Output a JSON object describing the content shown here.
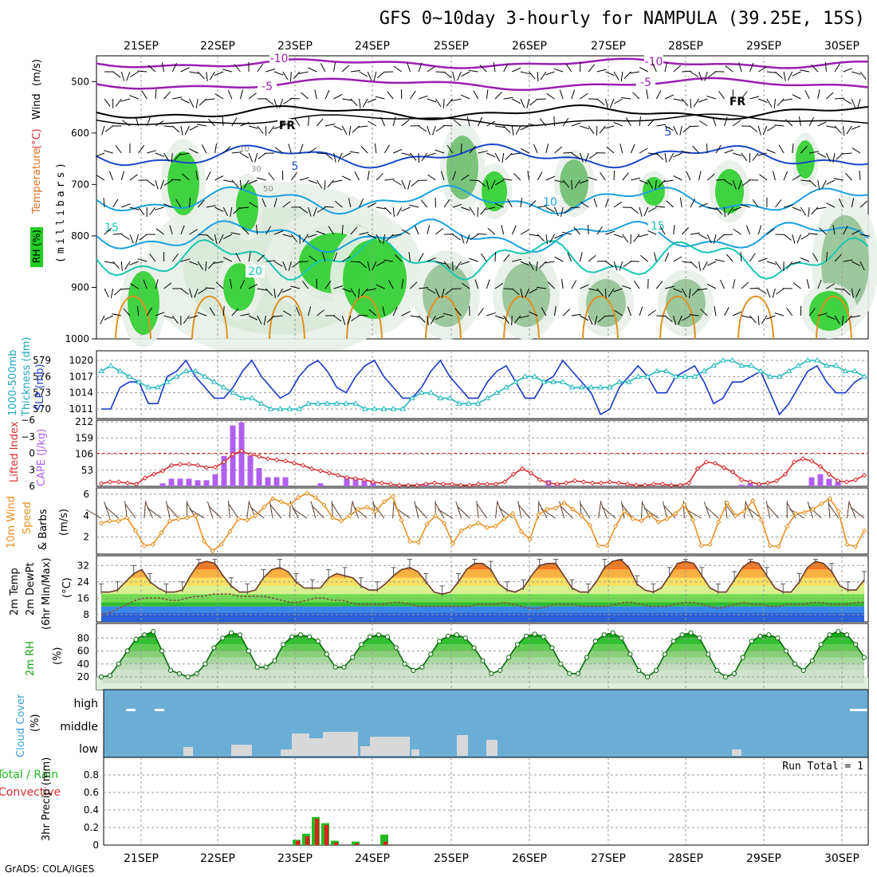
{
  "title": "GFS 0~10day 3-hourly for NAMPULA (39.25E, 15S)",
  "footer": "GrADS: COLA/IGES",
  "dates": [
    "21SEP",
    "22SEP",
    "23SEP",
    "24SEP",
    "25SEP",
    "26SEP",
    "27SEP",
    "28SEP",
    "29SEP",
    "30SEP"
  ],
  "colors": {
    "rh_green": "#22cc22",
    "temp_purple": "#9a1fb0",
    "temp_blue": "#1848c8",
    "temp_lightblue": "#1aa0e0",
    "temp_teal": "#18c8b0",
    "temp_orange": "#e09020",
    "slp_blue": "#1838c8",
    "thick_cyan": "#20b8c0",
    "cape_purple": "#b060f0",
    "li_red": "#d83030",
    "wind_orange": "#e89020",
    "rh_green_dark": "#10a010",
    "cloud_blue": "#6aaed6",
    "cloud_grey": "#d8d8d8"
  },
  "chart_data": [
    {
      "type": "contour",
      "panel": "upper-air",
      "ylabel_wind": "Wind",
      "ylabel_wind_unit": "(m/s)",
      "ylabel_temp": "Temperature",
      "ylabel_temp_unit": "(°C)",
      "ylabel_rh": "RH (%)",
      "ylabel_pressure": "(millibars)",
      "y_ticks": [
        "500",
        "600",
        "700",
        "800",
        "900",
        "1000"
      ],
      "ylim": [
        450,
        1000
      ],
      "temperature_contour_labels": [
        "-10",
        "-5",
        "FR",
        "5",
        "10",
        "15",
        "20"
      ],
      "rh_contour_labels": [
        "10",
        "30",
        "50"
      ]
    },
    {
      "type": "line",
      "panel": "slp-thickness",
      "ylabel_left": "1000-500mb",
      "ylabel_left2": "Thickness (dm)",
      "ylabel_right": "SLP (mb)",
      "y_ticks_thickness": [
        "579",
        "576",
        "573",
        "570"
      ],
      "y_ticks_slp": [
        "1020",
        "1017",
        "1014",
        "1011"
      ],
      "series": [
        {
          "name": "SLP",
          "values": [
            1011,
            1011,
            1015,
            1016,
            1016,
            1012,
            1012,
            1017,
            1018,
            1020,
            1017,
            1015,
            1013,
            1013,
            1015,
            1018,
            1020,
            1017,
            1015,
            1013,
            1014,
            1017,
            1019,
            1020,
            1018,
            1015,
            1014,
            1017,
            1019,
            1020,
            1017,
            1015,
            1013,
            1013,
            1015,
            1018,
            1020,
            1017,
            1015,
            1013,
            1013,
            1016,
            1018,
            1019,
            1016,
            1013,
            1013,
            1016,
            1017,
            1020,
            1018,
            1016,
            1014,
            1010,
            1011,
            1015,
            1017,
            1019,
            1017,
            1014,
            1014,
            1017,
            1018,
            1019,
            1016,
            1012,
            1013,
            1016,
            1016,
            1017,
            1018,
            1014,
            1010,
            1012,
            1015,
            1018,
            1019,
            1016,
            1014,
            1014,
            1016,
            1017
          ]
        },
        {
          "name": "Thickness",
          "values": [
            577,
            578,
            577,
            576,
            575,
            574,
            574,
            575,
            576,
            577,
            577,
            576,
            575,
            574,
            573,
            572,
            572,
            571,
            570,
            570,
            570,
            570,
            571,
            571,
            571,
            571,
            571,
            571,
            570,
            570,
            570,
            570,
            570,
            572,
            573,
            573,
            572,
            572,
            571,
            571,
            571,
            572,
            573,
            574,
            575,
            576,
            576,
            575,
            575,
            575,
            574,
            574,
            574,
            574,
            574,
            575,
            575,
            576,
            576,
            577,
            577,
            576,
            576,
            576,
            577,
            578,
            579,
            579,
            578,
            578,
            577,
            576,
            576,
            577,
            578,
            579,
            579,
            578,
            578,
            577,
            577,
            576
          ]
        }
      ]
    },
    {
      "type": "bar",
      "panel": "cape-li",
      "ylabel_left": "Lifted Index",
      "ylabel_right": "CAPE (J/kg)",
      "y_ticks_li": [
        "-6",
        "-3",
        "0",
        "3",
        "6"
      ],
      "y_ticks_cape": [
        "212",
        "159",
        "106",
        "53"
      ],
      "series": [
        {
          "name": "CAPE",
          "values": [
            0,
            0,
            0,
            0,
            0,
            0,
            0,
            10,
            25,
            25,
            25,
            20,
            20,
            40,
            100,
            200,
            210,
            100,
            60,
            30,
            30,
            30,
            0,
            0,
            0,
            10,
            0,
            0,
            30,
            25,
            20,
            15,
            0,
            0,
            5,
            0,
            0,
            10,
            0,
            0,
            0,
            0,
            0,
            0,
            0,
            0,
            0,
            0,
            0,
            0,
            0,
            20,
            10,
            0,
            0,
            0,
            0,
            0,
            0,
            0,
            0,
            0,
            0,
            0,
            0,
            0,
            0,
            0,
            0,
            0,
            0,
            0,
            0,
            5,
            10,
            5,
            0,
            0,
            0,
            0,
            0,
            30,
            40,
            25,
            15,
            0,
            0,
            0
          ]
        },
        {
          "name": "Lifted Index",
          "values": [
            5.5,
            5.2,
            5.2,
            5.4,
            5.6,
            4.5,
            3.8,
            3.2,
            2.2,
            2.0,
            2.0,
            2.2,
            2.6,
            2.5,
            1.6,
            0.2,
            -0.4,
            0.2,
            0.6,
            1.0,
            1.2,
            1.4,
            1.8,
            2.2,
            2.8,
            3.2,
            3.6,
            4.0,
            4.4,
            4.6,
            4.8,
            5.2,
            5.4,
            5.6,
            5.8,
            5.8,
            5.8,
            5.6,
            5.4,
            5.6,
            5.6,
            5.8,
            5.8,
            5.6,
            5.6,
            5.6,
            5.2,
            3.8,
            2.8,
            3.6,
            4.8,
            5.4,
            5.6,
            5.4,
            5.0,
            5.2,
            5.4,
            5.4,
            5.2,
            5.4,
            5.6,
            5.8,
            5.8,
            5.6,
            5.6,
            5.8,
            5.8,
            5.4,
            2.8,
            1.6,
            1.8,
            2.6,
            3.4,
            4.8,
            5.2,
            5.6,
            5.4,
            5.0,
            3.8,
            1.6,
            1.0,
            1.4,
            2.4,
            3.8,
            5.0,
            5.2,
            4.8,
            4.0
          ]
        }
      ]
    },
    {
      "type": "line",
      "panel": "10m-wind",
      "ylabel": "10m Wind",
      "ylabel2": "Speed",
      "ylabel3": "& Barbs",
      "ylabel_unit": "(m/s)",
      "y_ticks": [
        "6",
        "4",
        "2"
      ],
      "series": [
        {
          "name": "Speed",
          "values": [
            3.3,
            3.5,
            3.5,
            3.8,
            2.6,
            1.2,
            1.3,
            2.4,
            3.5,
            3.7,
            3.8,
            4.0,
            1.6,
            0.7,
            1.3,
            2.5,
            3.7,
            3.6,
            4.0,
            4.8,
            5.6,
            5.3,
            5.0,
            5.7,
            6.1,
            5.7,
            5.0,
            3.8,
            3.5,
            4.0,
            4.6,
            4.8,
            4.4,
            5.3,
            5.8,
            3.6,
            1.6,
            1.5,
            3.2,
            4.0,
            3.3,
            1.4,
            2.6,
            3.0,
            3.3,
            2.9,
            3.0,
            3.7,
            4.2,
            2.5,
            1.8,
            4.1,
            4.6,
            4.7,
            5.2,
            4.6,
            4.0,
            3.1,
            1.2,
            1.2,
            3.0,
            4.4,
            3.7,
            3.5,
            4.1,
            3.4,
            3.7,
            4.2,
            5.0,
            3.6,
            1.2,
            1.3,
            3.4,
            5.2,
            4.0,
            4.4,
            5.4,
            3.6,
            1.2,
            1.1,
            3.0,
            4.2,
            4.3,
            4.6,
            5.1,
            5.6,
            4.4,
            1.3,
            1.1,
            2.6
          ]
        }
      ]
    },
    {
      "type": "area",
      "panel": "2m-temp",
      "ylabel": "2m Temp",
      "ylabel2": "2m DewPt",
      "ylabel3": "(6hr Min/Max)",
      "ylabel_unit": "(°C)",
      "y_ticks": [
        "32",
        "24",
        "16",
        "8"
      ],
      "series": [
        {
          "name": "2m Temp",
          "values": [
            19,
            19,
            20,
            24,
            28,
            30,
            24,
            21,
            19,
            19,
            20,
            27,
            33,
            34,
            33,
            27,
            22,
            19,
            19,
            20,
            26,
            30,
            31,
            29,
            24,
            21,
            21,
            21,
            26,
            28,
            27,
            26,
            22,
            20,
            20,
            23,
            27,
            30,
            31,
            29,
            24,
            19,
            18,
            19,
            24,
            30,
            33,
            33,
            30,
            23,
            20,
            19,
            21,
            27,
            32,
            33,
            33,
            27,
            21,
            19,
            19,
            24,
            31,
            34,
            35,
            31,
            23,
            20,
            19,
            21,
            27,
            33,
            34,
            33,
            27,
            21,
            19,
            19,
            25,
            31,
            34,
            33,
            27,
            21,
            19,
            19,
            24,
            31,
            34,
            33,
            29,
            22,
            20,
            20,
            25
          ]
        },
        {
          "name": "2m DewPt",
          "values": [
            8,
            9,
            11,
            13,
            15,
            16,
            16,
            16,
            15,
            15,
            16,
            17,
            17,
            18,
            18,
            18,
            17,
            17,
            17,
            17,
            16,
            15,
            14,
            14,
            15,
            16,
            16,
            15,
            15,
            14,
            13,
            13,
            13,
            13,
            14,
            14,
            13,
            12,
            12,
            12,
            12,
            12,
            12,
            12,
            13,
            13,
            13,
            14,
            13,
            12,
            11,
            11,
            12,
            13,
            13,
            13,
            12,
            12,
            12,
            12,
            13,
            14,
            14,
            13,
            12,
            12,
            12,
            13,
            14,
            14,
            13,
            12,
            11,
            12,
            13,
            14,
            13,
            13,
            12,
            12,
            13,
            13,
            13,
            14,
            14,
            13,
            13,
            13,
            14,
            14
          ]
        }
      ]
    },
    {
      "type": "area",
      "panel": "2m-rh",
      "ylabel": "2m RH",
      "ylabel_unit": "(%)",
      "y_ticks": [
        "80",
        "60",
        "40",
        "20"
      ],
      "series": [
        {
          "name": "2m RH",
          "values": [
            20,
            22,
            40,
            60,
            78,
            85,
            90,
            60,
            30,
            25,
            20,
            25,
            40,
            65,
            80,
            88,
            85,
            60,
            35,
            35,
            45,
            70,
            82,
            85,
            82,
            75,
            55,
            35,
            35,
            50,
            70,
            82,
            85,
            82,
            65,
            40,
            30,
            35,
            55,
            75,
            83,
            85,
            80,
            65,
            45,
            25,
            30,
            50,
            70,
            83,
            86,
            82,
            65,
            40,
            25,
            25,
            50,
            75,
            85,
            88,
            80,
            55,
            30,
            20,
            30,
            55,
            75,
            85,
            88,
            80,
            55,
            30,
            20,
            25,
            50,
            75,
            83,
            85,
            80,
            60,
            40,
            30,
            45,
            70,
            85,
            90,
            85,
            70,
            50
          ]
        }
      ]
    },
    {
      "type": "bar",
      "panel": "cloud-cover",
      "ylabel": "Cloud Cover",
      "ylabel_unit": "(%)",
      "y_ticks": [
        "high",
        "middle",
        "low"
      ]
    },
    {
      "type": "bar",
      "panel": "precip",
      "ylabel": "3hr Precip (mm)",
      "ylabel_total": "Total / Rain",
      "ylabel_conv": "Convective",
      "annotation": "Run Total = 1",
      "y_ticks": [
        "0.8",
        "0.6",
        "0.4",
        "0.2",
        "0"
      ],
      "ylim": [
        0,
        1.0
      ],
      "series": [
        {
          "name": "Total / Rain",
          "values": [
            0.06,
            0.13,
            0.32,
            0.25,
            0.05,
            0.04,
            0.12
          ]
        },
        {
          "name": "Convective",
          "values": [
            0.05,
            0.1,
            0.3,
            0.23,
            0.03,
            0.02,
            0.04
          ]
        }
      ]
    }
  ]
}
